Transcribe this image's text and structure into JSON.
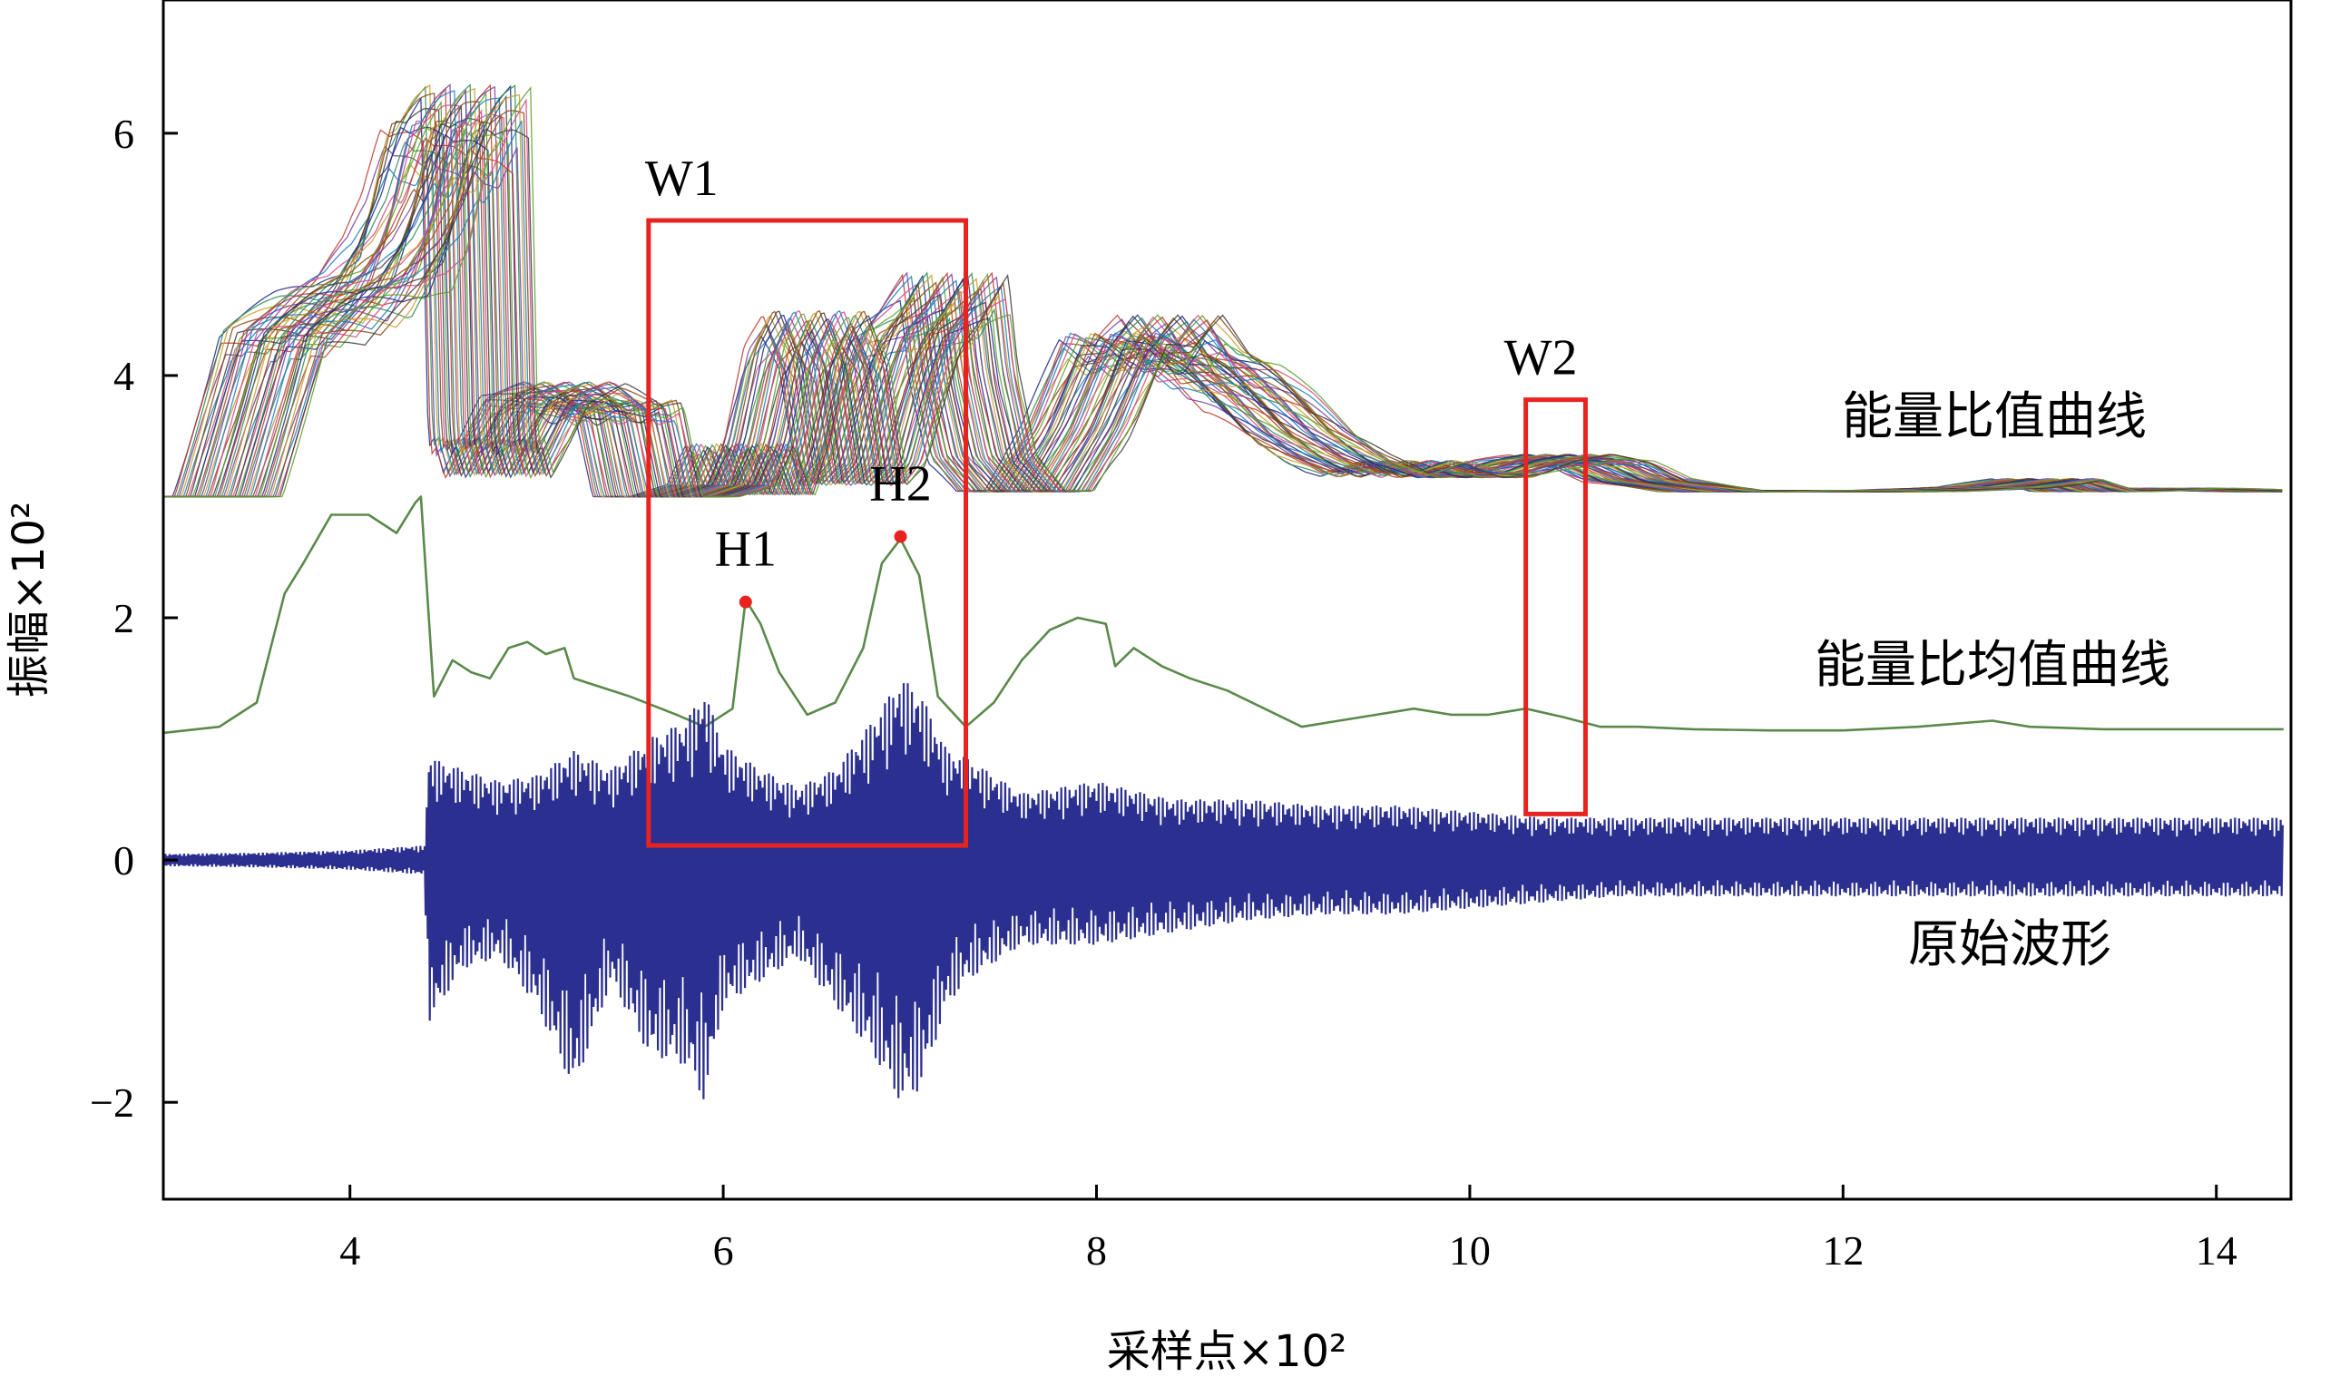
{
  "chart_data": {
    "type": "line",
    "xlabel": "采样点×10²",
    "ylabel": "振幅×10²",
    "xlim": [
      3,
      14.4
    ],
    "ylim": [
      -2.8,
      7.1
    ],
    "x_ticks": [
      {
        "value": 4,
        "label": "4"
      },
      {
        "value": 6,
        "label": "6"
      },
      {
        "value": 8,
        "label": "8"
      },
      {
        "value": 10,
        "label": "10"
      },
      {
        "value": 12,
        "label": "12"
      },
      {
        "value": 14,
        "label": "14"
      }
    ],
    "y_ticks": [
      {
        "value": -2,
        "label": "−2"
      },
      {
        "value": 0,
        "label": "0"
      },
      {
        "value": 2,
        "label": "2"
      },
      {
        "value": 4,
        "label": "4"
      },
      {
        "value": 6,
        "label": "6"
      }
    ],
    "colors": {
      "ratio_palette": [
        "#1f2a8a",
        "#c0392b",
        "#2e8b57",
        "#7b3fa0",
        "#c8a02a",
        "#1a7fc1",
        "#8b4513",
        "#d04a8a",
        "#3c3c3c",
        "#5aa02c"
      ],
      "mean_curve": "#5a8a4a",
      "waveform": "#2b2f8f",
      "box": "#e8231f",
      "marker": "#e8231f"
    },
    "series": [
      {
        "name": "能量比值曲线",
        "family_count": 50,
        "family_shift": 0.012,
        "family_step": 0.08,
        "family_width": 0.012,
        "baseline": 3.0,
        "x": [
          3.0,
          3.05,
          3.3,
          3.6,
          3.8,
          3.95,
          4.05,
          4.15,
          4.2,
          4.3,
          4.38,
          4.42,
          4.45,
          4.5,
          4.7,
          4.9,
          5.1,
          5.2,
          5.3,
          5.5,
          5.6,
          5.7,
          5.8,
          5.9,
          6.0,
          6.1,
          6.2,
          6.3,
          6.4,
          6.5,
          6.6,
          6.7,
          6.8,
          6.95,
          7.0,
          7.1,
          7.25,
          7.4,
          7.6,
          7.8,
          7.95,
          8.1,
          8.25,
          8.4,
          8.6,
          8.8,
          9.0,
          9.2,
          9.4,
          9.6,
          9.8,
          10.0,
          10.2,
          10.4,
          10.6,
          10.8,
          11.0,
          11.5,
          12.0,
          12.5,
          12.8,
          13.0,
          13.5,
          14.0,
          14.36
        ],
        "values": [
          3.0,
          3.0,
          4.4,
          4.7,
          4.85,
          5.15,
          5.5,
          6.1,
          6.1,
          6.3,
          6.4,
          3.4,
          3.5,
          3.2,
          3.85,
          3.95,
          3.75,
          3.8,
          3.0,
          3.0,
          3.05,
          3.1,
          3.45,
          3.0,
          3.5,
          4.25,
          4.55,
          4.15,
          3.1,
          3.3,
          3.9,
          4.4,
          4.55,
          4.85,
          4.1,
          3.35,
          3.05,
          3.05,
          3.6,
          4.35,
          4.25,
          4.5,
          4.2,
          4.1,
          3.85,
          3.55,
          3.35,
          3.2,
          3.3,
          3.2,
          3.2,
          3.3,
          3.35,
          3.3,
          3.15,
          3.1,
          3.05,
          3.05,
          3.05,
          3.08,
          3.15,
          3.05,
          3.07,
          3.05,
          3.05
        ]
      },
      {
        "name": "能量比均值曲线",
        "x": [
          3.0,
          3.3,
          3.5,
          3.65,
          3.75,
          3.9,
          4.1,
          4.25,
          4.35,
          4.38,
          4.45,
          4.55,
          4.65,
          4.75,
          4.85,
          4.95,
          5.05,
          5.15,
          5.2,
          5.3,
          5.5,
          5.75,
          5.9,
          6.05,
          6.12,
          6.2,
          6.3,
          6.45,
          6.6,
          6.75,
          6.85,
          6.95,
          7.05,
          7.15,
          7.3,
          7.45,
          7.6,
          7.75,
          7.9,
          8.05,
          8.1,
          8.2,
          8.35,
          8.5,
          8.7,
          8.9,
          9.1,
          9.3,
          9.5,
          9.7,
          9.9,
          10.1,
          10.3,
          10.5,
          10.7,
          10.9,
          11.2,
          11.6,
          12.0,
          12.4,
          12.8,
          13.0,
          13.4,
          13.8,
          14.36
        ],
        "values": [
          1.05,
          1.1,
          1.3,
          2.2,
          2.45,
          2.85,
          2.85,
          2.7,
          2.95,
          3.0,
          1.35,
          1.65,
          1.55,
          1.5,
          1.75,
          1.8,
          1.7,
          1.75,
          1.5,
          1.45,
          1.35,
          1.2,
          1.1,
          1.25,
          2.15,
          1.95,
          1.55,
          1.2,
          1.3,
          1.75,
          2.45,
          2.65,
          2.35,
          1.35,
          1.1,
          1.3,
          1.65,
          1.9,
          2.0,
          1.95,
          1.6,
          1.75,
          1.6,
          1.5,
          1.4,
          1.25,
          1.1,
          1.15,
          1.2,
          1.25,
          1.2,
          1.2,
          1.25,
          1.18,
          1.1,
          1.1,
          1.08,
          1.07,
          1.07,
          1.1,
          1.15,
          1.1,
          1.08,
          1.08,
          1.08
        ]
      },
      {
        "name": "原始波形",
        "x": [
          3.0,
          3.5,
          4.0,
          4.4,
          4.42,
          4.6,
          4.8,
          5.0,
          5.2,
          5.4,
          5.6,
          5.8,
          5.9,
          6.0,
          6.2,
          6.4,
          6.6,
          6.8,
          6.95,
          7.05,
          7.2,
          7.3,
          7.6,
          8.0,
          8.4,
          8.8,
          9.2,
          9.6,
          10.0,
          10.4,
          10.8,
          11.2,
          11.6,
          12.0,
          12.4,
          12.8,
          13.2,
          13.6,
          14.0,
          14.36
        ],
        "envelope_upper": [
          0.05,
          0.06,
          0.08,
          0.12,
          0.85,
          0.75,
          0.65,
          0.7,
          0.9,
          0.75,
          1.0,
          1.15,
          1.4,
          0.95,
          0.75,
          0.6,
          0.75,
          1.15,
          1.5,
          1.4,
          0.9,
          0.85,
          0.55,
          0.65,
          0.5,
          0.5,
          0.45,
          0.45,
          0.4,
          0.35,
          0.35,
          0.35,
          0.35,
          0.35,
          0.35,
          0.35,
          0.35,
          0.35,
          0.35,
          0.35
        ],
        "envelope_lower": [
          -0.05,
          -0.06,
          -0.08,
          -0.12,
          -1.35,
          -0.9,
          -0.8,
          -1.2,
          -1.9,
          -1.0,
          -1.6,
          -1.7,
          -2.0,
          -1.2,
          -1.0,
          -0.8,
          -1.2,
          -1.6,
          -2.0,
          -1.9,
          -1.2,
          -1.0,
          -0.7,
          -0.7,
          -0.6,
          -0.5,
          -0.45,
          -0.45,
          -0.4,
          -0.35,
          -0.3,
          -0.3,
          -0.3,
          -0.3,
          -0.3,
          -0.3,
          -0.3,
          -0.3,
          -0.3,
          -0.3
        ],
        "cycles_per_unit": 90
      }
    ],
    "windows": [
      {
        "label": "W1",
        "x0": 5.6,
        "x1": 7.3,
        "y0": 0.12,
        "y1": 5.28
      },
      {
        "label": "W2",
        "x0": 10.3,
        "x1": 10.62,
        "y0": 0.38,
        "y1": 3.8
      }
    ],
    "markers": [
      {
        "label": "H1",
        "x": 6.12,
        "y": 2.13
      },
      {
        "label": "H2",
        "x": 6.95,
        "y": 2.67
      }
    ]
  }
}
